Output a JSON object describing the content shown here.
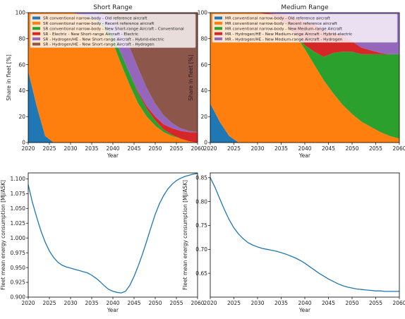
{
  "chart_data": [
    {
      "id": "sr_share",
      "type": "area",
      "title": "Short Range",
      "xlabel": "Year",
      "ylabel": "Share in fleet [%]",
      "xlim": [
        2020,
        2060
      ],
      "ylim": [
        0,
        100
      ],
      "xticks": [
        "2020",
        "2025",
        "2030",
        "2035",
        "2040",
        "2045",
        "2050",
        "2055",
        "2060"
      ],
      "yticks": [
        "0",
        "20",
        "40",
        "60",
        "80",
        "100"
      ],
      "grid": false,
      "legend_position": "top",
      "x": [
        2020,
        2022,
        2024,
        2026,
        2028,
        2030,
        2032,
        2034,
        2036,
        2038,
        2040,
        2042,
        2044,
        2046,
        2048,
        2050,
        2052,
        2054,
        2056,
        2058,
        2060
      ],
      "series": [
        {
          "name": "SR conventional narrow-body - Old reference aircraft",
          "color": "#1f77b4",
          "values": [
            55,
            28,
            5,
            0,
            0,
            0,
            0,
            0,
            0,
            0,
            0,
            0,
            0,
            0,
            0,
            0,
            0,
            0,
            0,
            0,
            0
          ]
        },
        {
          "name": "SR conventional narrow-body - Recent reference aircraft",
          "color": "#ff7f0e",
          "values": [
            45,
            72,
            95,
            100,
            100,
            100,
            99,
            97,
            94,
            88,
            77,
            60,
            44,
            30,
            20,
            13,
            8,
            5,
            3,
            1,
            0
          ]
        },
        {
          "name": "SR conventional narrow-body - New Short-range Aircraft - Conventional",
          "color": "#2ca02c",
          "values": [
            0,
            0,
            0,
            0,
            0,
            0,
            0,
            0,
            1,
            2,
            5,
            8,
            9,
            8,
            6,
            4,
            2,
            1,
            0,
            0,
            0
          ]
        },
        {
          "name": "SR - Electric - New Short-range Aircraft - Electric",
          "color": "#d62728",
          "values": [
            0,
            0,
            0,
            0,
            0,
            0,
            0,
            0,
            0,
            0,
            0,
            0,
            0,
            1,
            2,
            3,
            4,
            5,
            6,
            7,
            8
          ]
        },
        {
          "name": "SR - Hydrogen/HE - New Short-range Aircraft - Hybrid-electric",
          "color": "#9467bd",
          "values": [
            0,
            0,
            0,
            0,
            0,
            0,
            1,
            3,
            5,
            9,
            14,
            18,
            20,
            18,
            14,
            10,
            7,
            4,
            2,
            1,
            0
          ]
        },
        {
          "name": "SR - Hydrogen/HE - New Short-range Aircraft - Hydrogen",
          "color": "#8c564b",
          "values": [
            0,
            0,
            0,
            0,
            0,
            0,
            0,
            0,
            0,
            1,
            4,
            14,
            27,
            43,
            58,
            70,
            79,
            85,
            89,
            91,
            92
          ]
        }
      ]
    },
    {
      "id": "mr_share",
      "type": "area",
      "title": "Medium Range",
      "xlabel": "Year",
      "ylabel": "Share in fleet [%]",
      "xlim": [
        2020,
        2060
      ],
      "ylim": [
        0,
        100
      ],
      "xticks": [
        "2020",
        "2025",
        "2030",
        "2035",
        "2040",
        "2045",
        "2050",
        "2055",
        "2060"
      ],
      "yticks": [
        "0",
        "20",
        "40",
        "60",
        "80",
        "100"
      ],
      "grid": false,
      "legend_position": "top",
      "x": [
        2020,
        2022,
        2024,
        2026,
        2028,
        2030,
        2032,
        2034,
        2036,
        2038,
        2040,
        2042,
        2044,
        2046,
        2048,
        2050,
        2052,
        2054,
        2056,
        2058,
        2060
      ],
      "series": [
        {
          "name": "MR conventional narrow-body - Old reference aircraft",
          "color": "#1f77b4",
          "values": [
            30,
            16,
            5,
            0,
            0,
            0,
            0,
            0,
            0,
            0,
            0,
            0,
            0,
            0,
            0,
            0,
            0,
            0,
            0,
            0,
            0
          ]
        },
        {
          "name": "MR conventional narrow-body - Recent reference aircraft",
          "color": "#ff7f0e",
          "values": [
            70,
            84,
            95,
            100,
            100,
            100,
            99,
            96,
            91,
            83,
            72,
            60,
            48,
            38,
            29,
            22,
            16,
            12,
            8,
            5,
            3
          ]
        },
        {
          "name": "MR conventional narrow-body - New Medium-range Aircraft",
          "color": "#2ca02c",
          "values": [
            0,
            0,
            0,
            0,
            0,
            0,
            0,
            0,
            0,
            0,
            3,
            10,
            18,
            31,
            41,
            48,
            52,
            56,
            60,
            63,
            65
          ]
        },
        {
          "name": "MR - Hydrogen/HE - New Medium-range Aircraft - Hybrid-electric",
          "color": "#d62728",
          "values": [
            0,
            0,
            0,
            0,
            0,
            0,
            1,
            3,
            7,
            13,
            18,
            21,
            20,
            16,
            12,
            8,
            5,
            3,
            1,
            0,
            0
          ]
        },
        {
          "name": "MR - Hydrogen/HE - New Medium-range Aircraft - Hydrogen",
          "color": "#9467bd",
          "values": [
            0,
            0,
            0,
            0,
            0,
            0,
            0,
            1,
            2,
            4,
            7,
            9,
            14,
            15,
            18,
            22,
            27,
            29,
            31,
            32,
            32
          ]
        }
      ]
    },
    {
      "id": "sr_energy",
      "type": "line",
      "title": "",
      "xlabel": "Year",
      "ylabel": "Fleet mean energy consumption [MJ/ASK]",
      "xlim": [
        2020,
        2060
      ],
      "ylim": [
        0.9,
        1.11
      ],
      "xticks": [
        "2020",
        "2025",
        "2030",
        "2035",
        "2040",
        "2045",
        "2050",
        "2055",
        "2060"
      ],
      "yticks": [
        "0.900",
        "0.925",
        "0.950",
        "0.975",
        "1.000",
        "1.025",
        "1.050",
        "1.075",
        "1.100"
      ],
      "grid": false,
      "series": [
        {
          "name": "",
          "color": "#1f77b4",
          "x": [
            2020,
            2021,
            2022,
            2023,
            2024,
            2025,
            2026,
            2027,
            2028,
            2029,
            2030,
            2031,
            2032,
            2033,
            2034,
            2035,
            2036,
            2037,
            2038,
            2039,
            2040,
            2041,
            2042,
            2043,
            2044,
            2045,
            2046,
            2047,
            2048,
            2049,
            2050,
            2051,
            2052,
            2053,
            2054,
            2055,
            2056,
            2057,
            2058,
            2059,
            2060
          ],
          "values": [
            1.09,
            1.06,
            1.035,
            1.012,
            0.993,
            0.978,
            0.967,
            0.959,
            0.954,
            0.951,
            0.949,
            0.947,
            0.945,
            0.943,
            0.941,
            0.937,
            0.932,
            0.926,
            0.919,
            0.913,
            0.91,
            0.908,
            0.907,
            0.91,
            0.92,
            0.935,
            0.953,
            0.973,
            0.995,
            1.018,
            1.04,
            1.058,
            1.072,
            1.083,
            1.091,
            1.097,
            1.101,
            1.104,
            1.106,
            1.108,
            1.109
          ]
        }
      ]
    },
    {
      "id": "mr_energy",
      "type": "line",
      "title": "",
      "xlabel": "Year",
      "ylabel": "Fleet mean energy consumption [MJ/ASK]",
      "xlim": [
        2020,
        2060
      ],
      "ylim": [
        0.6,
        0.86
      ],
      "xticks": [
        "2020",
        "2025",
        "2030",
        "2035",
        "2040",
        "2045",
        "2050",
        "2055",
        "2060"
      ],
      "yticks": [
        "0.65",
        "0.70",
        "0.75",
        "0.80",
        "0.85"
      ],
      "grid": false,
      "series": [
        {
          "name": "",
          "color": "#1f77b4",
          "x": [
            2020,
            2021,
            2022,
            2023,
            2024,
            2025,
            2026,
            2027,
            2028,
            2029,
            2030,
            2031,
            2032,
            2033,
            2034,
            2035,
            2036,
            2037,
            2038,
            2039,
            2040,
            2041,
            2042,
            2043,
            2044,
            2045,
            2046,
            2047,
            2048,
            2049,
            2050,
            2051,
            2052,
            2053,
            2054,
            2055,
            2056,
            2057,
            2058,
            2059,
            2060
          ],
          "values": [
            0.85,
            0.83,
            0.806,
            0.783,
            0.762,
            0.745,
            0.732,
            0.722,
            0.714,
            0.709,
            0.705,
            0.702,
            0.7,
            0.698,
            0.696,
            0.693,
            0.69,
            0.686,
            0.682,
            0.677,
            0.671,
            0.664,
            0.657,
            0.65,
            0.644,
            0.638,
            0.633,
            0.628,
            0.624,
            0.621,
            0.619,
            0.617,
            0.616,
            0.615,
            0.614,
            0.613,
            0.613,
            0.612,
            0.612,
            0.612,
            0.612
          ]
        }
      ]
    }
  ]
}
